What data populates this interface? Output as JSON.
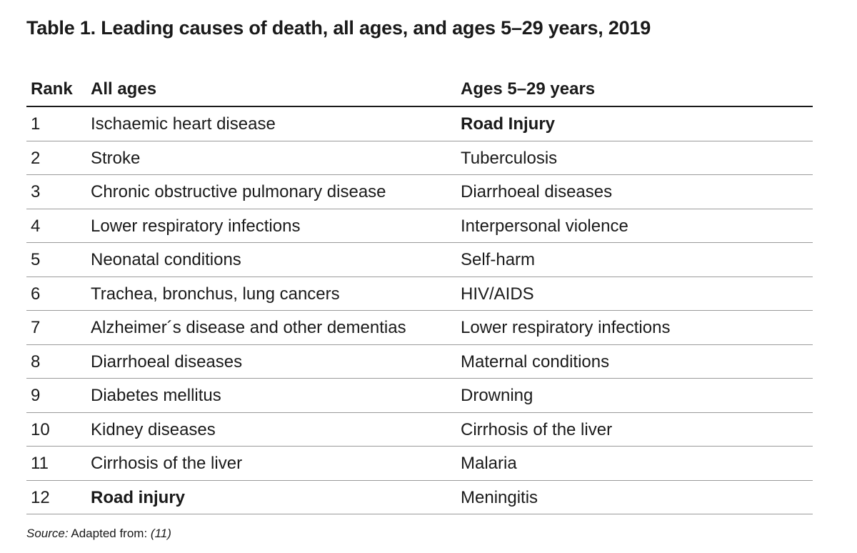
{
  "title": "Table 1. Leading causes of death, all ages, and ages 5–29 years, 2019",
  "headers": {
    "rank": "Rank",
    "all_ages": "All ages",
    "ages_5_29": "Ages 5–29 years"
  },
  "rows": [
    {
      "rank": "1",
      "all_ages": "Ischaemic heart disease",
      "ages_5_29": "Road Injury"
    },
    {
      "rank": "2",
      "all_ages": "Stroke",
      "ages_5_29": "Tuberculosis"
    },
    {
      "rank": "3",
      "all_ages": "Chronic obstructive pulmonary disease",
      "ages_5_29": "Diarrhoeal diseases"
    },
    {
      "rank": "4",
      "all_ages": "Lower respiratory infections",
      "ages_5_29": "Interpersonal violence"
    },
    {
      "rank": "5",
      "all_ages": "Neonatal conditions",
      "ages_5_29": "Self-harm"
    },
    {
      "rank": "6",
      "all_ages": "Trachea, bronchus, lung cancers",
      "ages_5_29": "HIV/AIDS"
    },
    {
      "rank": "7",
      "all_ages": "Alzheimer´s disease and other dementias",
      "ages_5_29": "Lower respiratory infections"
    },
    {
      "rank": "8",
      "all_ages": "Diarrhoeal diseases",
      "ages_5_29": "Maternal conditions"
    },
    {
      "rank": "9",
      "all_ages": "Diabetes mellitus",
      "ages_5_29": "Drowning"
    },
    {
      "rank": "10",
      "all_ages": "Kidney diseases",
      "ages_5_29": "Cirrhosis of the liver"
    },
    {
      "rank": "11",
      "all_ages": "Cirrhosis of the liver",
      "ages_5_29": "Malaria"
    },
    {
      "rank": "12",
      "all_ages": "Road injury",
      "ages_5_29": "Meningitis"
    }
  ],
  "source": {
    "label": "Source:",
    "text": "Adapted from:",
    "ref": "(11)"
  }
}
